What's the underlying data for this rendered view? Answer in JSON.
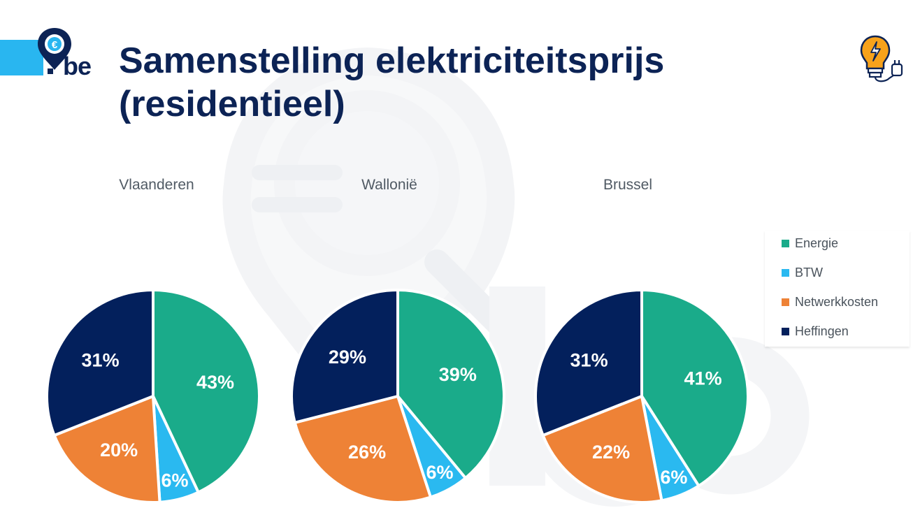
{
  "header": {
    "logo_text": "be",
    "title_line1": "Samenstelling elektriciteitsprijs",
    "title_line2": "(residentieel)"
  },
  "icons": {
    "logo": "euro-location-pin-icon",
    "corner": "lightbulb-plug-icon",
    "watermark": "euro-pin-be-watermark"
  },
  "colors": {
    "Energie": "#1aab8a",
    "BTW": "#2ab9f0",
    "Netwerkkosten": "#ee8236",
    "Heffingen": "#03205c",
    "title": "#0c2355",
    "accent": "#29b6f0"
  },
  "chart_data": [
    {
      "type": "pie",
      "title": "Vlaanderen",
      "categories": [
        "Energie",
        "BTW",
        "Netwerkkosten",
        "Heffingen"
      ],
      "values": [
        43,
        6,
        20,
        31
      ],
      "labels": [
        "43%",
        "6%",
        "20%",
        "31%"
      ]
    },
    {
      "type": "pie",
      "title": "Wallonië",
      "categories": [
        "Energie",
        "BTW",
        "Netwerkkosten",
        "Heffingen"
      ],
      "values": [
        39,
        6,
        26,
        29
      ],
      "labels": [
        "39%",
        "6%",
        "26%",
        "29%"
      ]
    },
    {
      "type": "pie",
      "title": "Brussel",
      "categories": [
        "Energie",
        "BTW",
        "Netwerkkosten",
        "Heffingen"
      ],
      "values": [
        41,
        6,
        22,
        31
      ],
      "labels": [
        "41%",
        "6%",
        "22%",
        "31%"
      ]
    }
  ],
  "legend": {
    "placement": "right",
    "items": [
      "Energie",
      "BTW",
      "Netwerkkosten",
      "Heffingen"
    ]
  }
}
